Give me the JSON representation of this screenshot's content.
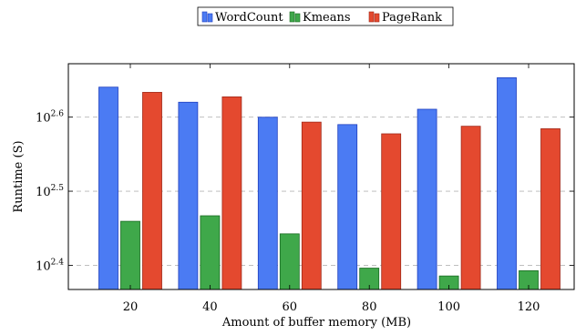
{
  "chart_data": {
    "type": "bar",
    "title": "",
    "xlabel": "Amount of buffer memory (MB)",
    "ylabel": "Runtime (S)",
    "yscale": "log10",
    "categories": [
      "20",
      "40",
      "60",
      "80",
      "100",
      "120"
    ],
    "series": [
      {
        "name": "WordCount",
        "color": "#4b7bf3",
        "stroke": "#1f3fbf",
        "values": [
          437,
          417,
          398,
          389,
          408,
          450
        ]
      },
      {
        "name": "Kmeans",
        "color": "#3fa84a",
        "stroke": "#1a6b22",
        "values": [
          288,
          293,
          277,
          249,
          243,
          247
        ]
      },
      {
        "name": "PageRank",
        "color": "#e4492f",
        "stroke": "#a02818",
        "values": [
          430,
          424,
          392,
          378,
          387,
          384
        ]
      }
    ],
    "yticks": [
      {
        "base": "10",
        "exp": "2.4",
        "value": 251.19
      },
      {
        "base": "10",
        "exp": "2.5",
        "value": 316.23
      },
      {
        "base": "10",
        "exp": "2.6",
        "value": 398.11
      }
    ],
    "ylim": [
      233,
      470
    ],
    "grid": "horizontal dashed",
    "legend_position": "top-center"
  }
}
